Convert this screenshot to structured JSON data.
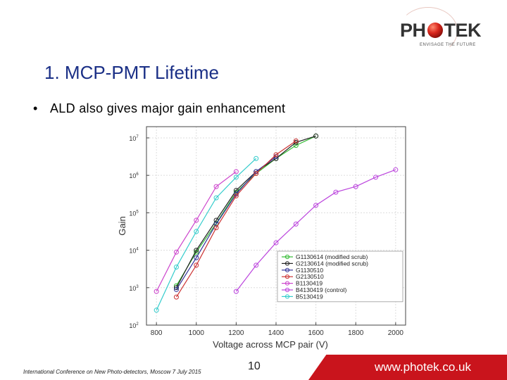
{
  "logo": {
    "brand_prefix": "PH",
    "brand_suffix": "TEK",
    "tagline": "ENVISAGE THE FUTURE",
    "colors": {
      "text": "#333333",
      "sphere": "#d9261c"
    }
  },
  "slide": {
    "title": "1. MCP-PMT Lifetime",
    "bullet": "ALD also gives major gain enhancement"
  },
  "footer": {
    "conference": "International Conference on New Photo-detectors, Moscow 7 July 2015",
    "page_number": "10",
    "website": "www.photek.co.uk",
    "band_color": "#c9141c"
  },
  "chart_data": {
    "type": "line",
    "title": "",
    "xlabel": "Voltage across MCP pair (V)",
    "ylabel": "Gain",
    "xlim": [
      750,
      2050
    ],
    "ylim_log10": [
      2,
      7.3
    ],
    "log_y": true,
    "grid": true,
    "legend_position": "bottom-right",
    "x_ticks": [
      {
        "value": 800,
        "label": "800"
      },
      {
        "value": 1000,
        "label": "1000"
      },
      {
        "value": 1200,
        "label": "1200"
      },
      {
        "value": 1400,
        "label": "1400"
      },
      {
        "value": 1600,
        "label": "1600"
      },
      {
        "value": 1800,
        "label": "1800"
      },
      {
        "value": 2000,
        "label": "2000"
      }
    ],
    "y_ticks": [
      {
        "exp": 2,
        "label": "10",
        "sup": "2"
      },
      {
        "exp": 3,
        "label": "10",
        "sup": "3"
      },
      {
        "exp": 4,
        "label": "10",
        "sup": "4"
      },
      {
        "exp": 5,
        "label": "10",
        "sup": "5"
      },
      {
        "exp": 6,
        "label": "10",
        "sup": "6"
      },
      {
        "exp": 7,
        "label": "10",
        "sup": "7"
      }
    ],
    "series": [
      {
        "name": "G1130614 (modified scrub)",
        "color": "#33bb33",
        "x": [
          900,
          1000,
          1100,
          1200,
          1300,
          1400,
          1500,
          1600
        ],
        "log10y": [
          3.05,
          3.95,
          4.72,
          5.55,
          6.05,
          6.45,
          6.8,
          7.05
        ]
      },
      {
        "name": "G2130614 (modified scrub)",
        "color": "#222222",
        "x": [
          900,
          1000,
          1100,
          1200,
          1300,
          1400,
          1500,
          1600
        ],
        "log10y": [
          3.0,
          4.0,
          4.8,
          5.6,
          6.1,
          6.45,
          6.88,
          7.05
        ]
      },
      {
        "name": "G1130510",
        "color": "#333399",
        "x": [
          900,
          1000,
          1100,
          1200,
          1300,
          1400
        ],
        "log10y": [
          2.95,
          3.8,
          4.7,
          5.5,
          6.1,
          6.5
        ]
      },
      {
        "name": "G2130510",
        "color": "#cc3333",
        "x": [
          900,
          1000,
          1100,
          1200,
          1300,
          1400,
          1500
        ],
        "log10y": [
          2.75,
          3.6,
          4.6,
          5.45,
          6.05,
          6.55,
          6.92
        ]
      },
      {
        "name": "B1130419",
        "color": "#cc44cc",
        "x": [
          800,
          900,
          1000,
          1100,
          1200
        ],
        "log10y": [
          2.9,
          3.95,
          4.8,
          5.7,
          6.1
        ]
      },
      {
        "name": "B4130419 (control)",
        "color": "#bb44dd",
        "x": [
          1200,
          1300,
          1400,
          1500,
          1600,
          1700,
          1800,
          1900,
          2000
        ],
        "log10y": [
          2.9,
          3.6,
          4.2,
          4.7,
          5.2,
          5.55,
          5.7,
          5.95,
          6.15
        ]
      },
      {
        "name": "B5130419",
        "color": "#33cccc",
        "x": [
          800,
          900,
          1000,
          1100,
          1200,
          1300
        ],
        "log10y": [
          2.4,
          3.55,
          4.5,
          5.4,
          5.95,
          6.45
        ]
      }
    ]
  }
}
